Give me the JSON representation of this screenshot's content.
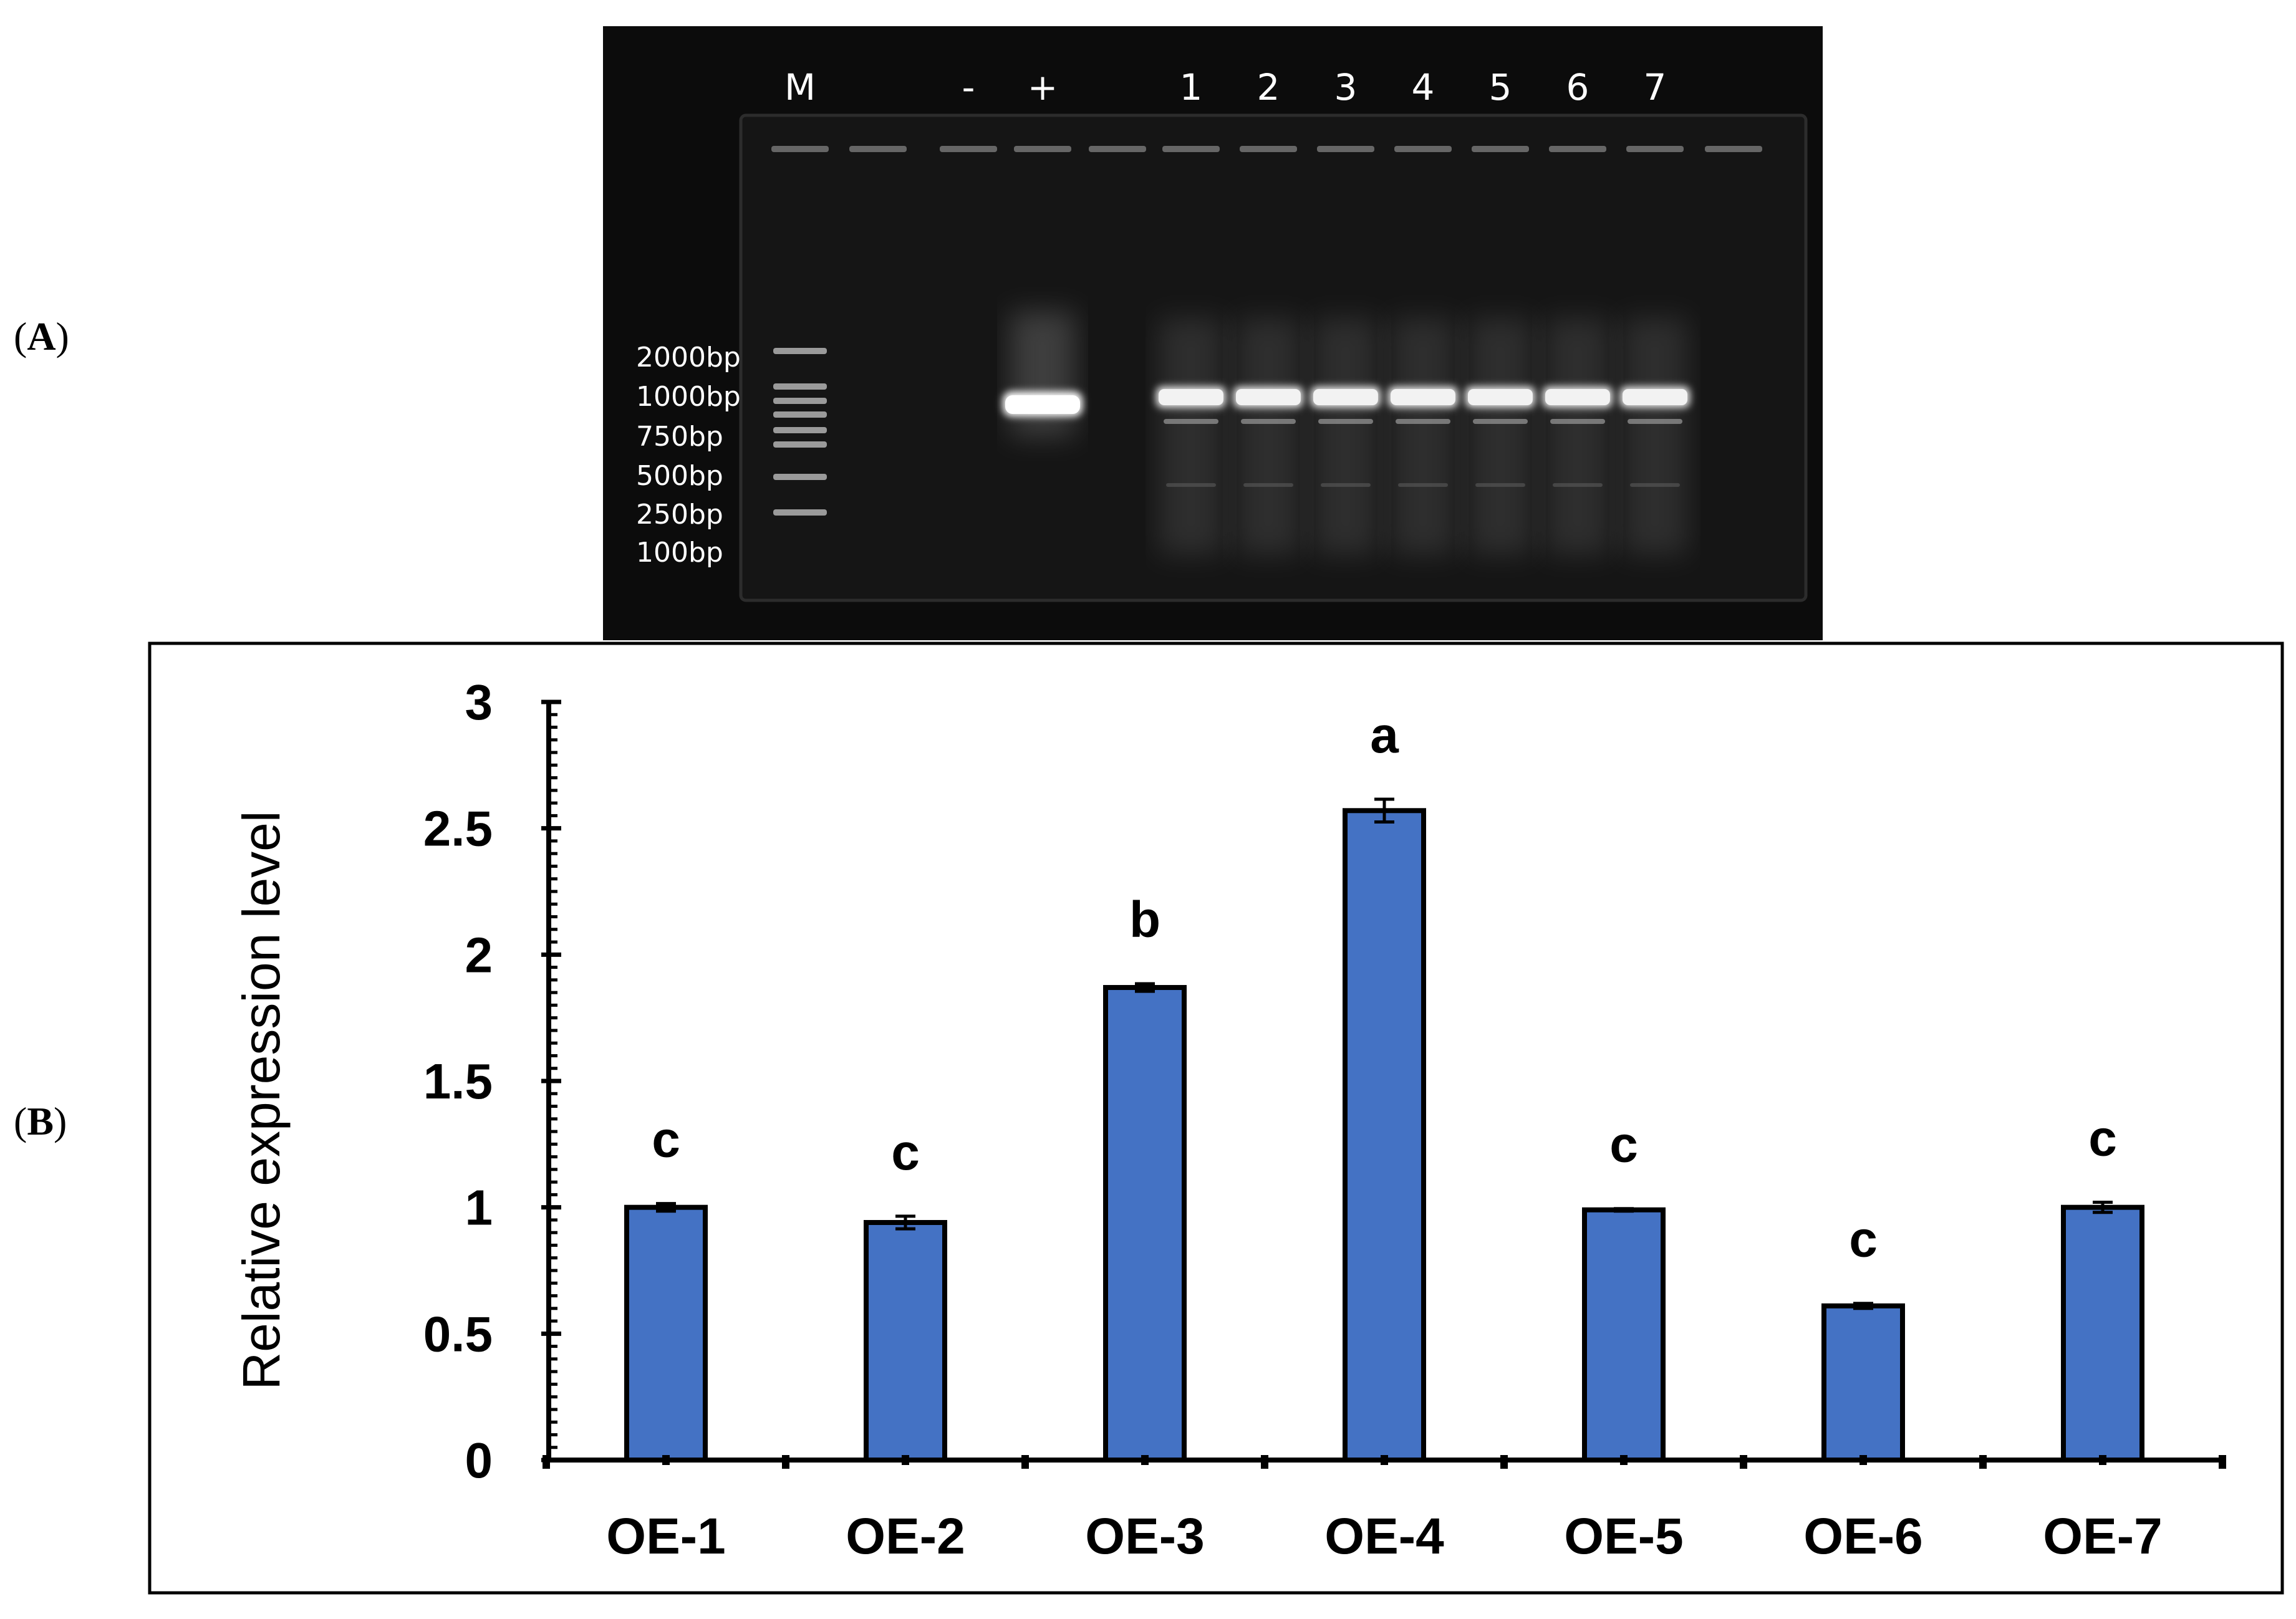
{
  "panels": {
    "a": {
      "open": "(",
      "letter": "A",
      "close": ")"
    },
    "b": {
      "open": "(",
      "letter": "B",
      "close": ")"
    }
  },
  "gel": {
    "lanes": [
      "M",
      "-",
      "+",
      "1",
      "2",
      "3",
      "4",
      "5",
      "6",
      "7"
    ],
    "marker_labels": [
      "2000bp",
      "1000bp",
      "750bp",
      "500bp",
      "250bp",
      "100bp"
    ],
    "colors": {
      "background": "#0c0c0c",
      "band": "#ffffff"
    }
  },
  "chart_data": {
    "type": "bar",
    "categories": [
      "OE-1",
      "OE-2",
      "OE-3",
      "OE-4",
      "OE-5",
      "OE-6",
      "OE-7"
    ],
    "values": [
      1.0,
      0.94,
      1.87,
      2.57,
      0.99,
      0.61,
      1.0
    ],
    "errors": [
      0.015,
      0.025,
      0.015,
      0.045,
      0.005,
      0.01,
      0.02
    ],
    "significance_letters": [
      "c",
      "c",
      "b",
      "a",
      "c",
      "c",
      "c"
    ],
    "ylabel": "Relative expression level",
    "xlabel": "",
    "ylim": [
      0,
      3
    ],
    "yticks": [
      "0",
      "0.5",
      "1",
      "1.5",
      "2",
      "2.5",
      "3"
    ],
    "grid": false,
    "bar_color": "#4472c4"
  }
}
